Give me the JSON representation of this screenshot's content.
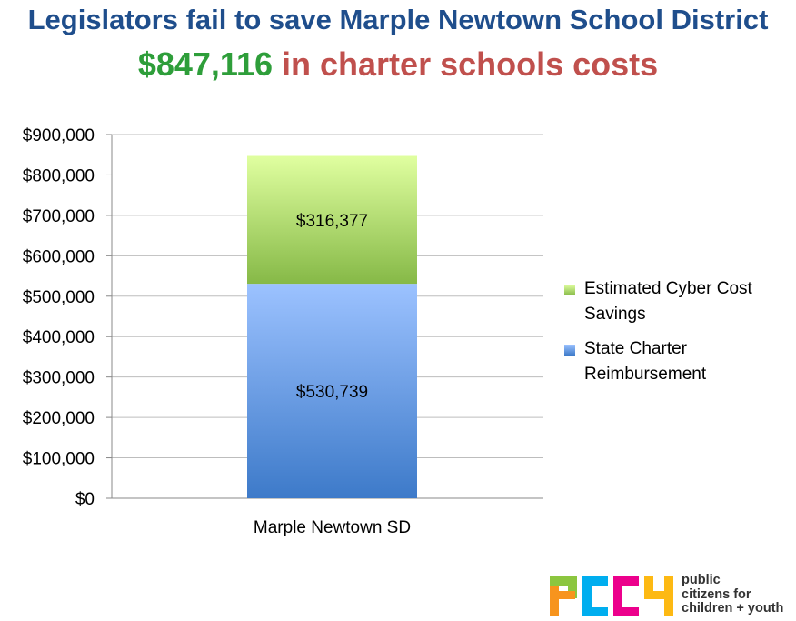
{
  "title": {
    "line1": "Legislators fail to save Marple Newtown School District",
    "amount": "$847,116",
    "rest": "in charter schools costs"
  },
  "colors": {
    "title1": "#1f4e8c",
    "amount": "#2e9e3a",
    "rest": "#c0504d",
    "state_charter": "#5b8fd6",
    "cyber_savings": "#a6cf5e"
  },
  "chart_data": {
    "type": "bar",
    "stacked": true,
    "categories": [
      "Marple Newtown SD"
    ],
    "series": [
      {
        "name": "State Charter Reimbursement",
        "values": [
          530739
        ],
        "label": "$530,739",
        "color": "#5b8fd6"
      },
      {
        "name": "Estimated Cyber Cost Savings",
        "values": [
          316377
        ],
        "label": "$316,377",
        "color": "#a6cf5e"
      }
    ],
    "ylim": [
      0,
      900000
    ],
    "yticks": [
      "$0",
      "$100,000",
      "$200,000",
      "$300,000",
      "$400,000",
      "$500,000",
      "$600,000",
      "$700,000",
      "$800,000",
      "$900,000"
    ],
    "grid": true,
    "legend_position": "right"
  },
  "legend": {
    "items": [
      {
        "label": "Estimated Cyber Cost Savings",
        "color": "#a6cf5e"
      },
      {
        "label": "State Charter Reimbursement",
        "color": "#5b8fd6"
      }
    ]
  },
  "logo": {
    "letters": "PCCY",
    "text_line1": "public",
    "text_line2": "citizens for",
    "text_line3": "children + youth"
  }
}
